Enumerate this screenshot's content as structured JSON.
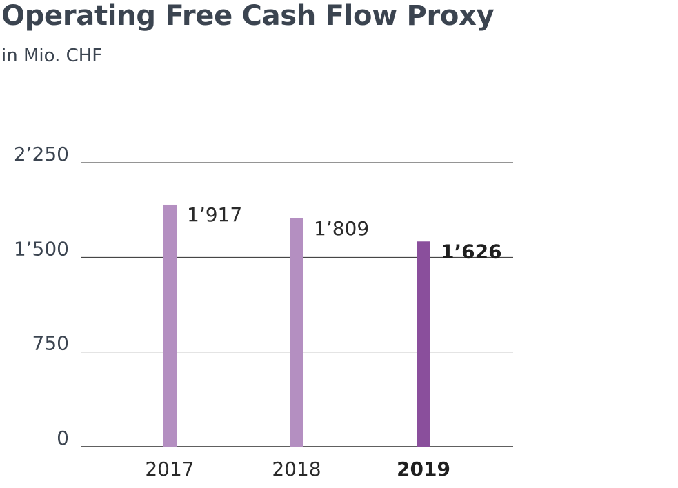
{
  "chart_data": {
    "type": "bar",
    "title": "Operating Free Cash Flow Proxy",
    "subtitle": "in Mio. CHF",
    "categories": [
      "2017",
      "2018",
      "2019"
    ],
    "values": [
      1917,
      1809,
      1626
    ],
    "value_labels": [
      "1’917",
      "1’809",
      "1’626"
    ],
    "highlight_index": 2,
    "yticks": [
      0,
      750,
      1500,
      2250
    ],
    "ytick_labels": [
      "0",
      "750",
      "1’500",
      "2’250"
    ],
    "ylim": [
      0,
      2250
    ],
    "grid": true,
    "colors": {
      "bar": "#b48fc1",
      "bar_highlight": "#8a4f9c",
      "grid": "#2b2b2b",
      "text": "#3b4450"
    }
  }
}
